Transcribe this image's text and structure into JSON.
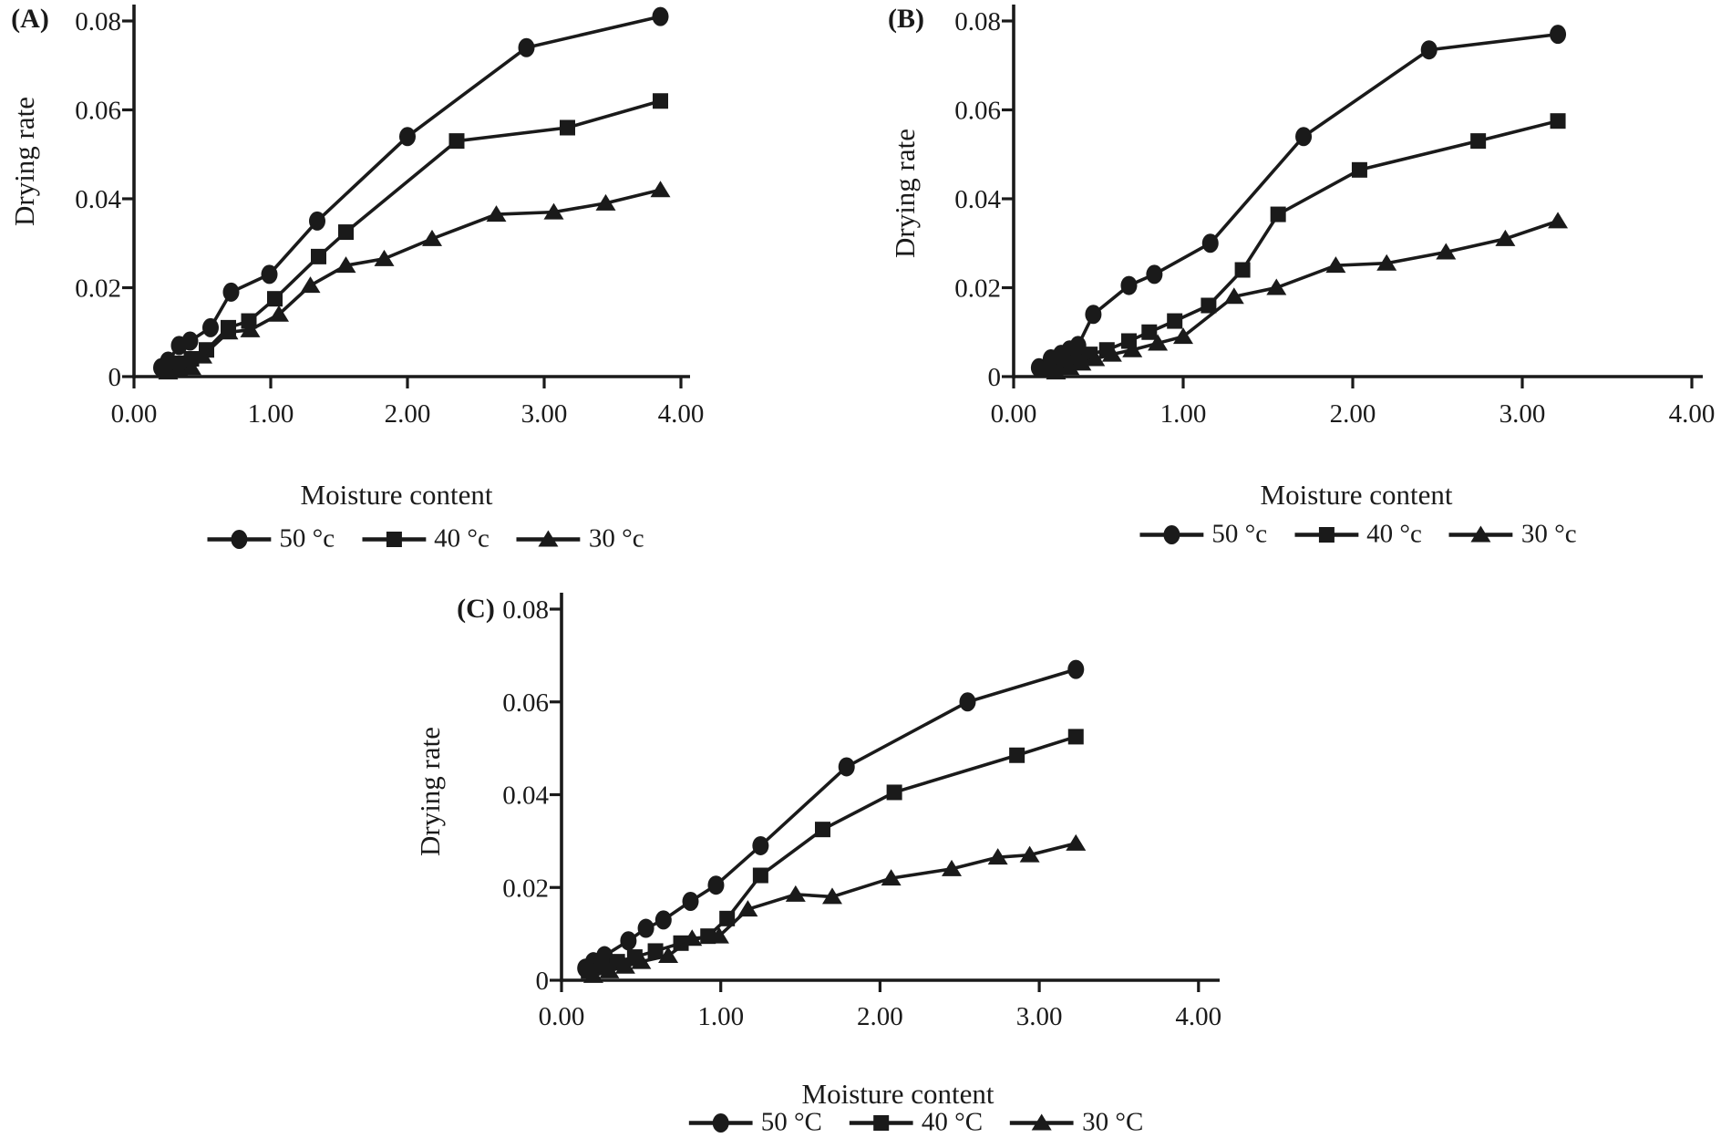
{
  "colors": {
    "ink": "#1a1a1a",
    "background": "#ffffff"
  },
  "chart_data": [
    {
      "type": "line",
      "panel_label": "(A)",
      "xlabel": "Moisture content",
      "ylabel": "Drying rate",
      "xlim": [
        0,
        4
      ],
      "ylim": [
        0,
        0.08
      ],
      "grid": false,
      "legend_position": "bottom",
      "x_tick_labels": [
        "0.00",
        "1.00",
        "2.00",
        "3.00",
        "4.00"
      ],
      "x_tick_values": [
        0,
        1,
        2,
        3,
        4
      ],
      "y_tick_labels": [
        "0",
        "0.02",
        "0.04",
        "0.06",
        "0.08"
      ],
      "y_tick_values": [
        0,
        0.02,
        0.04,
        0.06,
        0.08
      ],
      "series": [
        {
          "name": "50 °c",
          "marker": "circle",
          "x": [
            0.2,
            0.25,
            0.33,
            0.41,
            0.56,
            0.71,
            0.99,
            1.34,
            2.0,
            2.87,
            3.85
          ],
          "y": [
            0.002,
            0.0035,
            0.007,
            0.008,
            0.011,
            0.019,
            0.023,
            0.035,
            0.054,
            0.074,
            0.081
          ]
        },
        {
          "name": "40 °c",
          "marker": "square",
          "x": [
            0.22,
            0.28,
            0.35,
            0.42,
            0.53,
            0.69,
            0.84,
            1.03,
            1.35,
            1.55,
            2.36,
            3.17,
            3.85
          ],
          "y": [
            0.0015,
            0.0025,
            0.003,
            0.004,
            0.006,
            0.011,
            0.0125,
            0.0175,
            0.027,
            0.0325,
            0.053,
            0.056,
            0.062
          ]
        },
        {
          "name": "30 °c",
          "marker": "triangle",
          "x": [
            0.25,
            0.33,
            0.42,
            0.5,
            0.69,
            0.85,
            1.06,
            1.29,
            1.55,
            1.83,
            2.18,
            2.65,
            3.07,
            3.45,
            3.85
          ],
          "y": [
            0.001,
            0.0015,
            0.002,
            0.0046,
            0.01,
            0.0105,
            0.014,
            0.0205,
            0.025,
            0.0265,
            0.031,
            0.0365,
            0.037,
            0.039,
            0.042
          ]
        }
      ]
    },
    {
      "type": "line",
      "panel_label": "(B)",
      "xlabel": "Moisture content",
      "ylabel": "Drying rate",
      "xlim": [
        0,
        4
      ],
      "ylim": [
        0,
        0.08
      ],
      "grid": false,
      "legend_position": "bottom",
      "x_tick_labels": [
        "0.00",
        "1.00",
        "2.00",
        "3.00",
        "4.00"
      ],
      "x_tick_values": [
        0,
        1,
        2,
        3,
        4
      ],
      "y_tick_labels": [
        "0",
        "0.02",
        "0.04",
        "0.06",
        "0.08"
      ],
      "y_tick_values": [
        0,
        0.02,
        0.04,
        0.06,
        0.08
      ],
      "series": [
        {
          "name": "50 °c",
          "marker": "circle",
          "x": [
            0.15,
            0.22,
            0.28,
            0.33,
            0.38,
            0.47,
            0.68,
            0.83,
            1.16,
            1.71,
            2.45,
            3.21
          ],
          "y": [
            0.002,
            0.004,
            0.005,
            0.006,
            0.007,
            0.014,
            0.0205,
            0.023,
            0.03,
            0.054,
            0.0735,
            0.077
          ]
        },
        {
          "name": "40 °c",
          "marker": "square",
          "x": [
            0.22,
            0.3,
            0.38,
            0.45,
            0.55,
            0.68,
            0.8,
            0.95,
            1.15,
            1.35,
            1.56,
            2.04,
            2.74,
            3.21
          ],
          "y": [
            0.002,
            0.003,
            0.004,
            0.005,
            0.006,
            0.008,
            0.01,
            0.0125,
            0.016,
            0.024,
            0.0365,
            0.0465,
            0.053,
            0.0575
          ]
        },
        {
          "name": "30 °c",
          "marker": "triangle",
          "x": [
            0.25,
            0.33,
            0.4,
            0.48,
            0.58,
            0.7,
            0.85,
            1.0,
            1.3,
            1.55,
            1.9,
            2.2,
            2.55,
            2.9,
            3.21
          ],
          "y": [
            0.001,
            0.002,
            0.003,
            0.004,
            0.005,
            0.006,
            0.0075,
            0.009,
            0.018,
            0.02,
            0.025,
            0.0255,
            0.028,
            0.031,
            0.035
          ]
        }
      ]
    },
    {
      "type": "line",
      "panel_label": "(C)",
      "xlabel": "Moisture content",
      "ylabel": "Drying rate",
      "xlim": [
        0,
        4
      ],
      "ylim": [
        0,
        0.08
      ],
      "grid": false,
      "legend_position": "bottom",
      "x_tick_labels": [
        "0.00",
        "1.00",
        "2.00",
        "3.00",
        "4.00"
      ],
      "x_tick_values": [
        0,
        1,
        2,
        3,
        4
      ],
      "y_tick_labels": [
        "0",
        "0.02",
        "0.04",
        "0.06",
        "0.08"
      ],
      "y_tick_values": [
        0,
        0.02,
        0.04,
        0.06,
        0.08
      ],
      "series": [
        {
          "name": "50 °C",
          "marker": "circle",
          "x": [
            0.15,
            0.2,
            0.27,
            0.42,
            0.53,
            0.64,
            0.81,
            0.97,
            1.25,
            1.79,
            2.55,
            3.23
          ],
          "y": [
            0.0026,
            0.004,
            0.0053,
            0.0085,
            0.0112,
            0.013,
            0.017,
            0.0205,
            0.029,
            0.046,
            0.06,
            0.067
          ]
        },
        {
          "name": "40 °C",
          "marker": "square",
          "x": [
            0.17,
            0.25,
            0.35,
            0.46,
            0.59,
            0.75,
            0.92,
            1.04,
            1.25,
            1.64,
            2.09,
            2.86,
            3.23
          ],
          "y": [
            0.002,
            0.003,
            0.004,
            0.005,
            0.0063,
            0.008,
            0.0095,
            0.0133,
            0.0226,
            0.0325,
            0.0405,
            0.0485,
            0.0525
          ]
        },
        {
          "name": "30 °C",
          "marker": "triangle",
          "x": [
            0.2,
            0.3,
            0.4,
            0.5,
            0.67,
            0.82,
            0.99,
            1.17,
            1.47,
            1.7,
            2.07,
            2.45,
            2.74,
            2.94,
            3.23
          ],
          "y": [
            0.001,
            0.002,
            0.003,
            0.004,
            0.0053,
            0.009,
            0.0095,
            0.0153,
            0.0185,
            0.018,
            0.022,
            0.024,
            0.0265,
            0.027,
            0.0295
          ]
        }
      ]
    }
  ]
}
